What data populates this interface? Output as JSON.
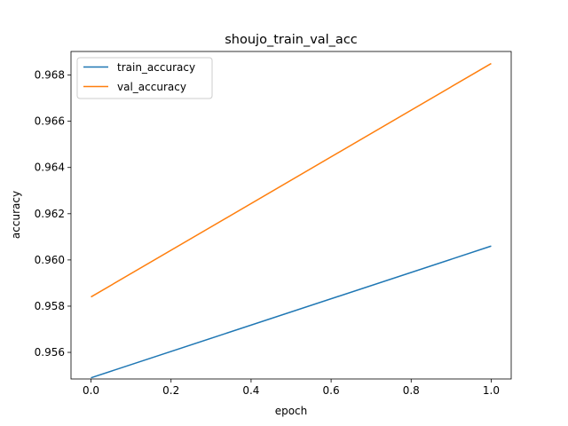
{
  "chart_data": {
    "type": "line",
    "title": "shoujo_train_val_acc",
    "xlabel": "epoch",
    "ylabel": "accuracy",
    "xlim": [
      -0.05,
      1.05
    ],
    "ylim": [
      0.95485,
      0.96902
    ],
    "x_ticks": [
      0.0,
      0.2,
      0.4,
      0.6,
      0.8,
      1.0
    ],
    "x_tick_labels": [
      "0.0",
      "0.2",
      "0.4",
      "0.6",
      "0.8",
      "1.0"
    ],
    "y_ticks": [
      0.956,
      0.958,
      0.96,
      0.962,
      0.964,
      0.966,
      0.968
    ],
    "y_tick_labels": [
      "0.956",
      "0.958",
      "0.960",
      "0.962",
      "0.964",
      "0.966",
      "0.968"
    ],
    "grid": false,
    "legend_position": "upper-left",
    "x": [
      0,
      1
    ],
    "series": [
      {
        "name": "train_accuracy",
        "color": "#1f77b4",
        "values": [
          0.9549,
          0.9606
        ]
      },
      {
        "name": "val_accuracy",
        "color": "#ff7f0e",
        "values": [
          0.9584,
          0.9685
        ]
      }
    ]
  }
}
